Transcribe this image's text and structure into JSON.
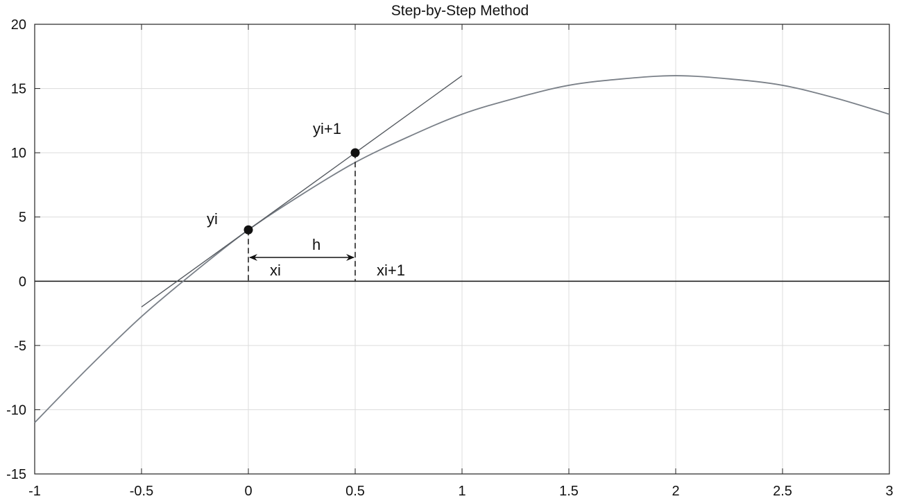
{
  "chart_data": {
    "type": "line",
    "title": "Step-by-Step Method",
    "xlabel": "",
    "ylabel": "",
    "xlim": [
      -1,
      3
    ],
    "ylim": [
      -15,
      20
    ],
    "xticks": [
      -1,
      -0.5,
      0,
      0.5,
      1,
      1.5,
      2,
      2.5,
      3
    ],
    "xtick_labels": [
      "-1",
      "-0.5",
      "0",
      "0.5",
      "1",
      "1.5",
      "2",
      "2.5",
      "3"
    ],
    "yticks": [
      -15,
      -10,
      -5,
      0,
      5,
      10,
      15,
      20
    ],
    "ytick_labels": [
      "-15",
      "-10",
      "-5",
      "0",
      "5",
      "10",
      "15",
      "20"
    ],
    "grid": true,
    "series": [
      {
        "kind": "curve",
        "color": "#7a8088",
        "x": [
          -1,
          -0.75,
          -0.5,
          -0.25,
          0,
          0.25,
          0.5,
          0.75,
          1,
          1.25,
          1.5,
          1.75,
          2,
          2.25,
          2.5,
          2.75,
          3
        ],
        "y": [
          -11,
          -6.75,
          -2.75,
          0.75,
          4,
          6.75,
          9.25,
          11.25,
          13,
          14.25,
          15.25,
          15.75,
          16,
          15.75,
          15.25,
          14.25,
          13
        ]
      },
      {
        "kind": "tangent",
        "color": "#555a60",
        "x": [
          -0.5,
          1
        ],
        "y": [
          -2,
          16
        ]
      }
    ],
    "points": [
      {
        "label": "yi",
        "x": 0,
        "y": 4
      },
      {
        "label": "yi+1",
        "x": 0.5,
        "y": 10
      }
    ],
    "annotations": {
      "xi": "xi",
      "xi1": "xi+1",
      "h": "h",
      "yi": "yi",
      "yi1": "yi+1"
    }
  }
}
